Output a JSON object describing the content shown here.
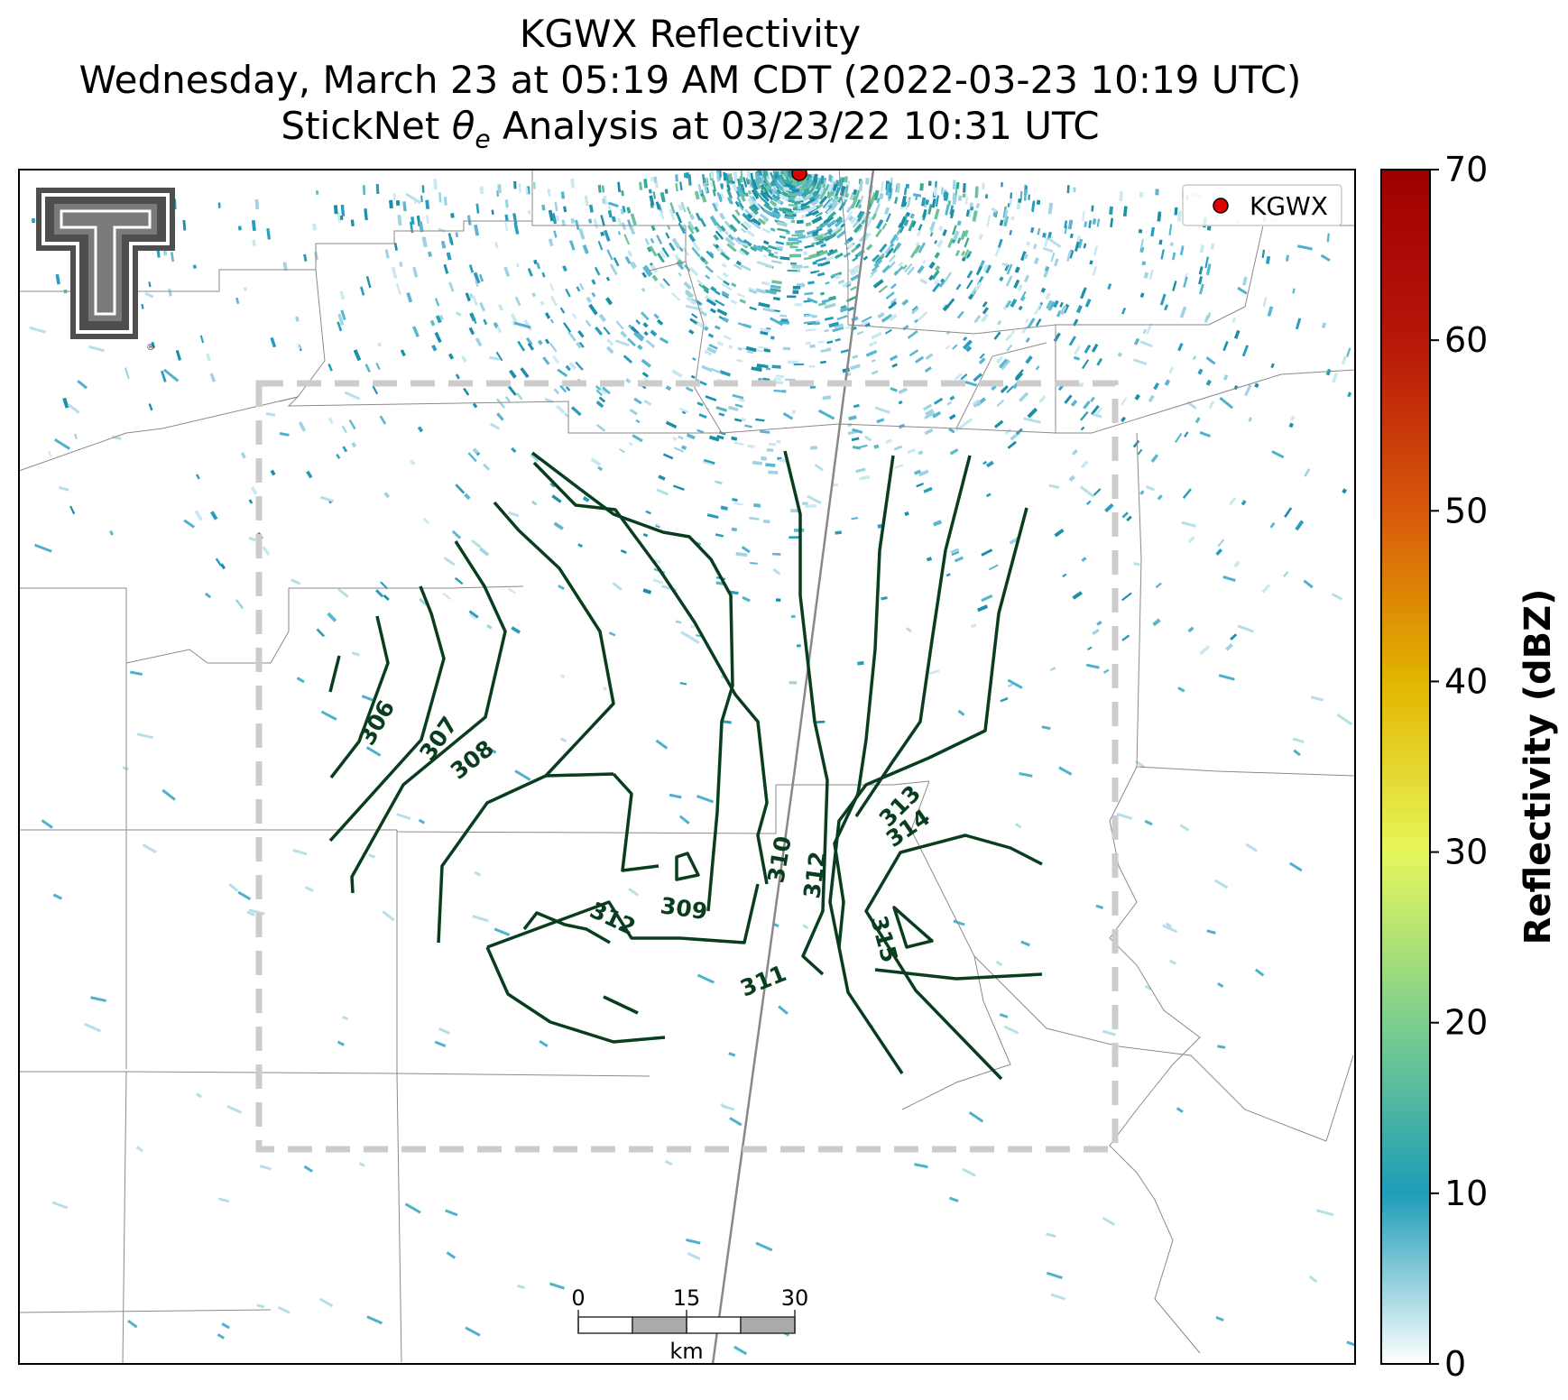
{
  "title": {
    "line1": "KGWX Reflectivity",
    "line2": "Wednesday, March 23 at 05:19 AM CDT (2022-03-23 10:19 UTC)",
    "line3_prefix": "StickNet ",
    "line3_theta": "θ",
    "line3_sub": "e",
    "line3_suffix": " Analysis at 03/23/22 10:31 UTC"
  },
  "legend": {
    "radar_label": "KGWX",
    "marker_color": "#e00000"
  },
  "colorbar": {
    "label": "Reflectivity (dBZ)",
    "ticks": [
      "0",
      "10",
      "20",
      "30",
      "40",
      "50",
      "60",
      "70"
    ],
    "colors": [
      "#ffffff",
      "#1d9cb8",
      "#7dcf8d",
      "#e6f65a",
      "#e2b500",
      "#d8590b",
      "#b71609",
      "#9e0000"
    ]
  },
  "contours": {
    "color": "#083d1e",
    "labels": [
      "306",
      "307",
      "308",
      "309",
      "310",
      "311",
      "312",
      "312",
      "313",
      "314",
      "315"
    ]
  },
  "scale_bar": {
    "ticks": [
      "0",
      "15",
      "30"
    ],
    "unit": "km"
  },
  "logo": {
    "name": "Texas Tech Double T",
    "mark": "®"
  }
}
